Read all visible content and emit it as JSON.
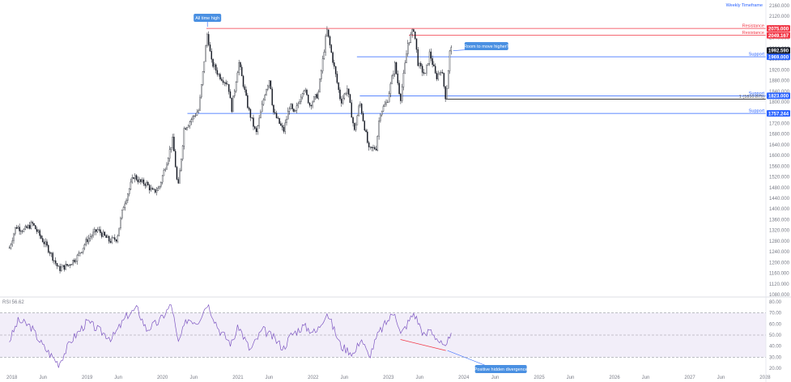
{
  "timeframe_label": "Weekly Timeframe",
  "rsi_label": "RSI  56.62",
  "chart_data": {
    "type": "candlestick",
    "title": "",
    "price_axis": {
      "ticks": [
        "2160.000",
        "2120.000",
        "2080.000",
        "2040.000",
        "2000.000",
        "1960.000",
        "1920.000",
        "1880.000",
        "1840.000",
        "1800.000",
        "1760.000",
        "1720.000",
        "1680.000",
        "1640.000",
        "1600.000",
        "1560.000",
        "1520.000",
        "1480.000",
        "1440.000",
        "1400.000",
        "1360.000",
        "1320.000",
        "1280.000",
        "1240.000",
        "1200.000",
        "1160.000",
        "1120.000",
        "1080.000"
      ],
      "ylim": [
        1080,
        2160
      ]
    },
    "time_axis": {
      "ticks": [
        "2018",
        "Jun",
        "2019",
        "Jun",
        "2020",
        "Jun",
        "2021",
        "Jun",
        "2022",
        "Jun",
        "2023",
        "Jun",
        "2024",
        "Jun",
        "2025",
        "Jun",
        "2026",
        "Jun",
        "2027",
        "Jun",
        "2028"
      ]
    },
    "price_path": [
      [
        "2017-12-20",
        1255
      ],
      [
        "2018-01-20",
        1335
      ],
      [
        "2018-03-01",
        1320
      ],
      [
        "2018-04-10",
        1345
      ],
      [
        "2018-05-20",
        1295
      ],
      [
        "2018-07-01",
        1245
      ],
      [
        "2018-08-16",
        1175
      ],
      [
        "2018-10-01",
        1190
      ],
      [
        "2018-11-15",
        1222
      ],
      [
        "2019-01-01",
        1285
      ],
      [
        "2019-02-20",
        1322
      ],
      [
        "2019-04-20",
        1280
      ],
      [
        "2019-05-25",
        1290
      ],
      [
        "2019-06-25",
        1410
      ],
      [
        "2019-08-15",
        1525
      ],
      [
        "2019-09-15",
        1500
      ],
      [
        "2019-10-15",
        1495
      ],
      [
        "2019-11-15",
        1462
      ],
      [
        "2019-12-15",
        1478
      ],
      [
        "2020-01-15",
        1560
      ],
      [
        "2020-02-20",
        1660
      ],
      [
        "2020-03-16",
        1470
      ],
      [
        "2020-04-15",
        1700
      ],
      [
        "2020-05-20",
        1735
      ],
      [
        "2020-06-25",
        1770
      ],
      [
        "2020-08-06",
        2060
      ],
      [
        "2020-08-25",
        1950
      ],
      [
        "2020-10-01",
        1900
      ],
      [
        "2020-11-15",
        1865
      ],
      [
        "2020-12-01",
        1770
      ],
      [
        "2021-01-05",
        1950
      ],
      [
        "2021-02-20",
        1775
      ],
      [
        "2021-03-30",
        1680
      ],
      [
        "2021-05-15",
        1845
      ],
      [
        "2021-06-05",
        1890
      ],
      [
        "2021-06-20",
        1765
      ],
      [
        "2021-08-10",
        1690
      ],
      [
        "2021-09-10",
        1790
      ],
      [
        "2021-10-01",
        1750
      ],
      [
        "2021-11-15",
        1855
      ],
      [
        "2021-12-15",
        1790
      ],
      [
        "2022-01-25",
        1830
      ],
      [
        "2022-03-08",
        2070
      ],
      [
        "2022-04-10",
        1940
      ],
      [
        "2022-05-15",
        1800
      ],
      [
        "2022-06-15",
        1850
      ],
      [
        "2022-07-20",
        1690
      ],
      [
        "2022-08-15",
        1800
      ],
      [
        "2022-09-28",
        1620
      ],
      [
        "2022-11-03",
        1630
      ],
      [
        "2022-11-20",
        1760
      ],
      [
        "2022-12-25",
        1800
      ],
      [
        "2023-02-01",
        1940
      ],
      [
        "2023-02-28",
        1810
      ],
      [
        "2023-04-05",
        2020
      ],
      [
        "2023-05-04",
        2075
      ],
      [
        "2023-05-25",
        1940
      ],
      [
        "2023-06-28",
        1900
      ],
      [
        "2023-07-20",
        1985
      ],
      [
        "2023-08-20",
        1890
      ],
      [
        "2023-09-15",
        1925
      ],
      [
        "2023-10-06",
        1810
      ],
      [
        "2023-10-27",
        2005
      ],
      [
        "2023-11-03",
        1993
      ]
    ],
    "horizontal_levels": [
      {
        "label": "Resistance",
        "value": 2075.0,
        "color": "#f23645",
        "tag": "2075.000"
      },
      {
        "label": "Resistance",
        "value": 2049.167,
        "color": "#f23645",
        "tag": "2049.167"
      },
      {
        "label": "Support",
        "value": 1969.0,
        "color": "#2962ff",
        "tag": "1969.000"
      },
      {
        "label": "Support",
        "value": 1823.0,
        "color": "#2962ff",
        "tag": "1823.000"
      },
      {
        "label": "1 (1810.875)",
        "value": 1810.875,
        "color": "#000000",
        "tag": ""
      },
      {
        "label": "Support",
        "value": 1757.244,
        "color": "#2962ff",
        "tag": "1757.244"
      }
    ],
    "last_price": {
      "value": 1992.59,
      "tag": "1992.590"
    },
    "annotations": [
      {
        "text": "All time high",
        "date": "2020-08-06",
        "value": 2075
      },
      {
        "text": "Room to move higher?",
        "date": "2023-11-03",
        "value": 1992
      }
    ]
  },
  "rsi_data": {
    "ticks": [
      "80.00",
      "70.00",
      "60.00",
      "50.00",
      "40.00",
      "30.00",
      "20.00"
    ],
    "ylim": [
      20,
      80
    ],
    "band": [
      30,
      70
    ],
    "value": 56.62,
    "series": [
      [
        "2017-12-20",
        45
      ],
      [
        "2018-02-01",
        63
      ],
      [
        "2018-04-01",
        58
      ],
      [
        "2018-06-01",
        40
      ],
      [
        "2018-08-16",
        24
      ],
      [
        "2018-10-15",
        45
      ],
      [
        "2019-01-01",
        62
      ],
      [
        "2019-03-01",
        54
      ],
      [
        "2019-05-01",
        47
      ],
      [
        "2019-07-15",
        68
      ],
      [
        "2019-09-01",
        74
      ],
      [
        "2019-10-15",
        55
      ],
      [
        "2019-12-15",
        62
      ],
      [
        "2020-02-15",
        78
      ],
      [
        "2020-03-16",
        42
      ],
      [
        "2020-05-01",
        65
      ],
      [
        "2020-06-20",
        62
      ],
      [
        "2020-08-06",
        79
      ],
      [
        "2020-10-01",
        55
      ],
      [
        "2020-11-30",
        42
      ],
      [
        "2021-01-05",
        58
      ],
      [
        "2021-03-01",
        36
      ],
      [
        "2021-05-01",
        55
      ],
      [
        "2021-06-20",
        48
      ],
      [
        "2021-08-10",
        38
      ],
      [
        "2021-09-15",
        50
      ],
      [
        "2021-11-15",
        58
      ],
      [
        "2022-01-15",
        52
      ],
      [
        "2022-03-08",
        71
      ],
      [
        "2022-05-15",
        40
      ],
      [
        "2022-07-20",
        33
      ],
      [
        "2022-08-20",
        48
      ],
      [
        "2022-09-28",
        30
      ],
      [
        "2022-11-15",
        52
      ],
      [
        "2023-02-01",
        72
      ],
      [
        "2023-02-28",
        50
      ],
      [
        "2023-05-04",
        70
      ],
      [
        "2023-06-28",
        48
      ],
      [
        "2023-07-20",
        56
      ],
      [
        "2023-09-01",
        45
      ],
      [
        "2023-10-06",
        36
      ],
      [
        "2023-11-03",
        57
      ]
    ],
    "divergence_line": [
      [
        "2023-02-28",
        46
      ],
      [
        "2023-10-06",
        36
      ]
    ],
    "annotation": {
      "text": "Positive hidden divergence",
      "date": "2023-10-06",
      "value": 36
    }
  }
}
